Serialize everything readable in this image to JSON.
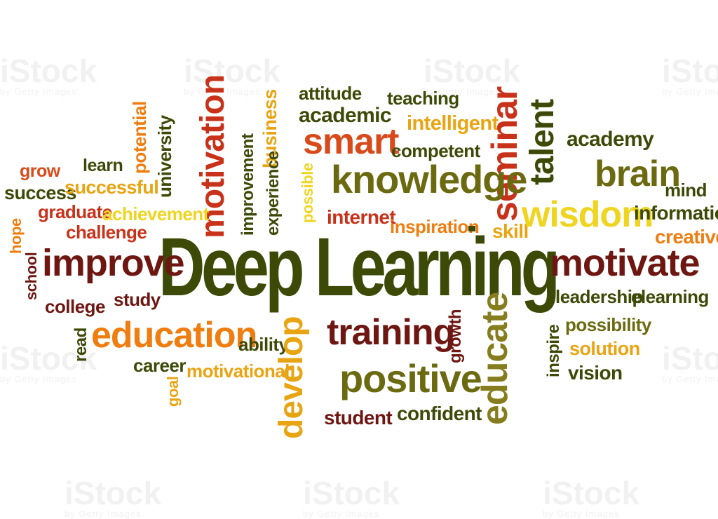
{
  "watermark": {
    "brand": "iStock",
    "byline": "by Getty Images"
  },
  "colors": {
    "dark_green": "#3d4a07",
    "olive": "#6b6a10",
    "khaki": "#857d1e",
    "maroon": "#6e1712",
    "dark_red": "#8c1e14",
    "red": "#c8321a",
    "orange_red": "#d94a1a",
    "orange": "#ef7d10",
    "gold": "#e8a412",
    "yellow": "#efd51f"
  },
  "title": "Deep Learning",
  "words": {
    "attitude": "attitude",
    "teaching": "teaching",
    "academic": "academic",
    "intelligent": "intelligent",
    "smart": "smart",
    "competent": "competent",
    "seminar": "seminar",
    "talent": "talent",
    "academy": "academy",
    "motivation": "motivation",
    "business": "business",
    "potential": "potential",
    "university": "university",
    "improvement": "improvement",
    "experience": "experience",
    "possible": "possible",
    "knowledge": "knowledge",
    "brain": "brain",
    "mind": "mind",
    "grow": "grow",
    "learn": "learn",
    "success": "success",
    "successful": "successful",
    "graduate": "graduate",
    "achievement": "achievement",
    "challenge": "challenge",
    "hope": "hope",
    "internet": "internet",
    "inspiration": "inspiration",
    "skill": "skill",
    "wisdom": "wisdom",
    "information": "information",
    "creative": "creative",
    "school": "school",
    "improve": "improve",
    "motivate": "motivate",
    "study": "study",
    "college": "college",
    "leadership": "leadership",
    "elearning": "elearning",
    "education": "education",
    "training": "training",
    "growth": "growth",
    "educate": "educate",
    "possibility": "possibility",
    "read": "read",
    "ability": "ability",
    "solution": "solution",
    "inspire": "inspire",
    "career": "career",
    "motivational": "motivational",
    "develop": "develop",
    "positive": "positive",
    "vision": "vision",
    "goal": "goal",
    "student": "student",
    "confident": "confident"
  }
}
